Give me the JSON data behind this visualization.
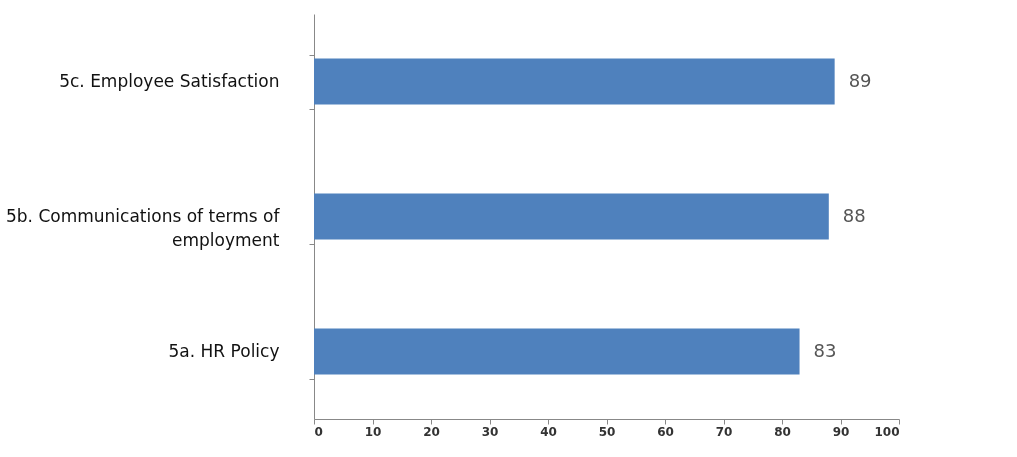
{
  "chart_data": {
    "type": "bar",
    "orientation": "horizontal",
    "categories": [
      "5c.  Employee Satisfaction",
      "5b. Communications of terms of employment",
      "5a.  HR Policy"
    ],
    "values": [
      89,
      88,
      83
    ],
    "color": "#4f81bd",
    "data_labels": true,
    "xlim": [
      0,
      100
    ],
    "xticks": [
      0,
      10,
      20,
      30,
      40,
      50,
      60,
      70,
      80,
      90,
      100
    ],
    "grid": false
  }
}
